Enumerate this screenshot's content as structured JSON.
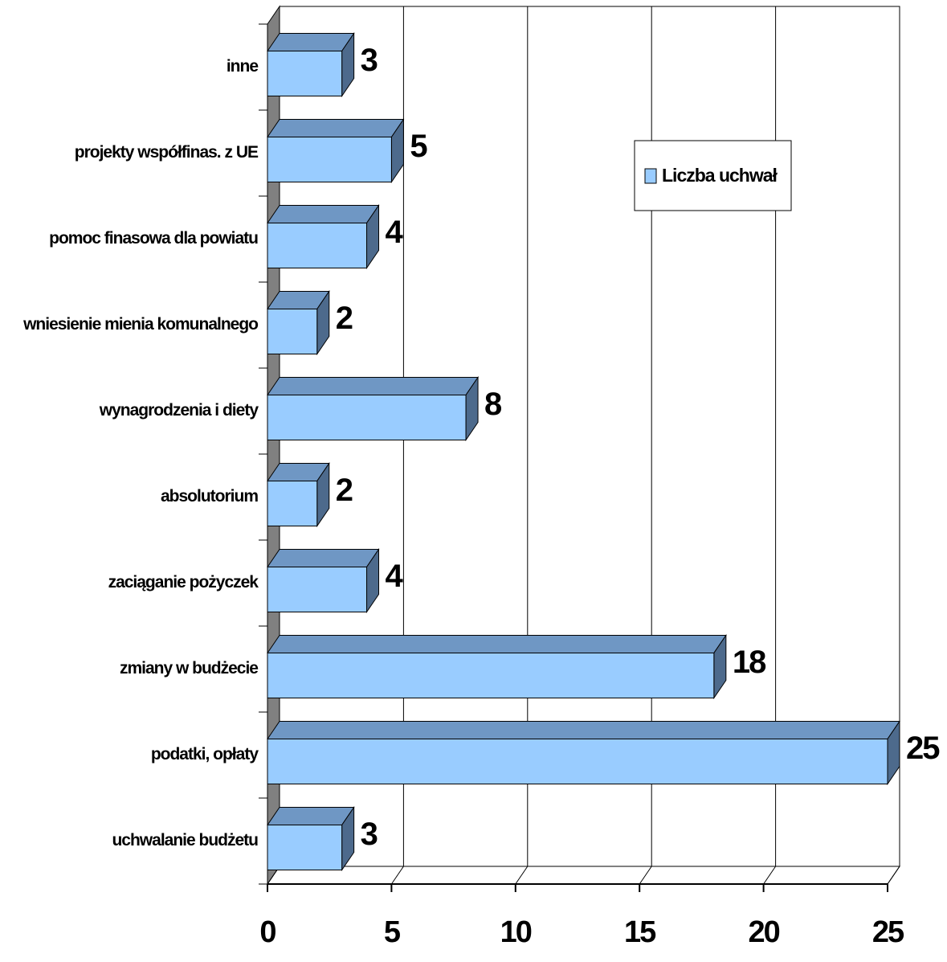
{
  "chart_data": {
    "type": "bar3d_horizontal",
    "categories": [
      "inne",
      "projekty współfinas. z UE",
      "pomoc finasowa dla powiatu",
      "wniesienie mienia komunalnego",
      "wynagrodzenia i diety",
      "absolutorium",
      "zaciąganie pożyczek",
      "zmiany w budżecie",
      "podatki, opłaty",
      "uchwalanie budżetu"
    ],
    "series": [
      {
        "name": "Liczba uchwał",
        "color": "#99ccff",
        "values": [
          3,
          5,
          4,
          2,
          8,
          2,
          4,
          18,
          25,
          3
        ]
      }
    ],
    "xlim": [
      0,
      25
    ],
    "xticks": [
      0,
      5,
      10,
      15,
      20,
      25
    ],
    "grid": true,
    "legend": "upper right"
  }
}
